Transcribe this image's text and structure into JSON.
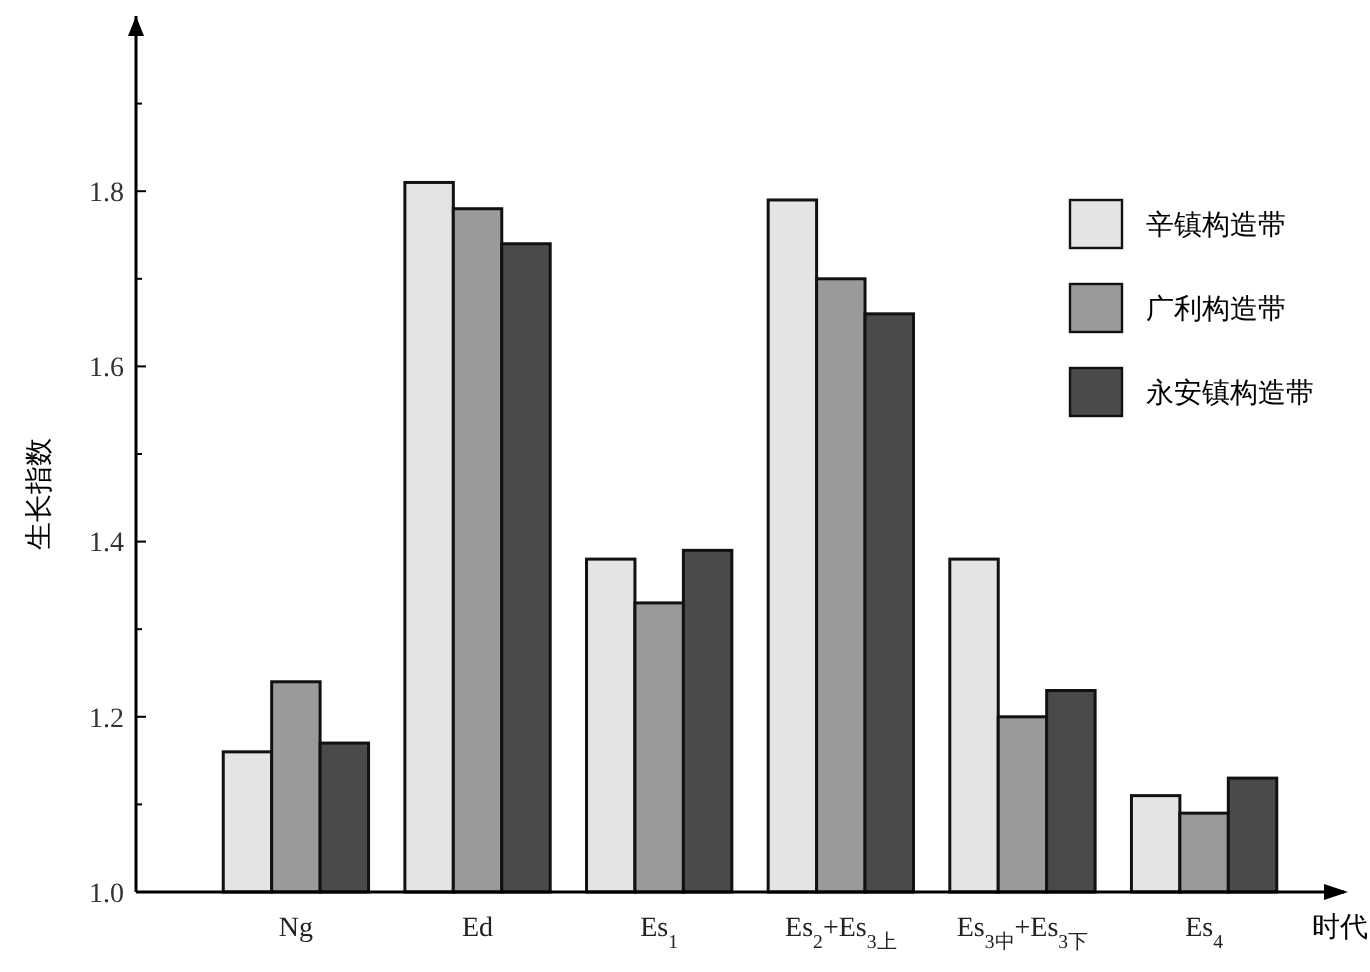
{
  "chart_data": {
    "type": "bar",
    "xlabel": "时代",
    "ylabel": "生长指数",
    "categories": [
      "Ng",
      "Ed",
      "Es$_{1}$",
      "Es$_{2}$+Es$_{3上}$",
      "Es$_{3中}$+Es$_{3下}$",
      "Es$_{4}$"
    ],
    "series": [
      {
        "name": "辛镇构造带",
        "color": "#e4e4e4",
        "values": [
          1.16,
          1.81,
          1.38,
          1.79,
          1.38,
          1.11
        ]
      },
      {
        "name": "广利构造带",
        "color": "#9a9a9a",
        "values": [
          1.24,
          1.78,
          1.33,
          1.7,
          1.2,
          1.09
        ]
      },
      {
        "name": "永安镇构造带",
        "color": "#4a4a4a",
        "values": [
          1.17,
          1.74,
          1.39,
          1.66,
          1.23,
          1.13
        ]
      }
    ],
    "ylim": [
      1.0,
      2.0
    ],
    "yticks": [
      {
        "value": 1.0,
        "label": "1.0"
      },
      {
        "value": 1.1,
        "label": null
      },
      1.2,
      {
        "value": 1.3,
        "label": null
      },
      1.4,
      {
        "value": 1.5,
        "label": null
      },
      1.6,
      {
        "value": 1.7,
        "label": null
      },
      1.8,
      {
        "value": 1.9,
        "label": null
      }
    ],
    "legend": "top right",
    "grid": false
  }
}
